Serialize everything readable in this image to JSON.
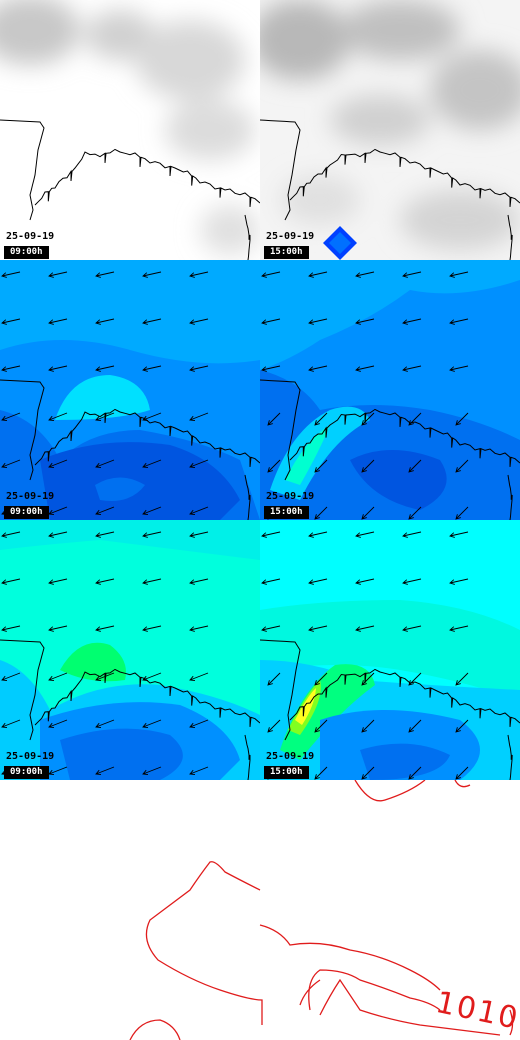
{
  "panels": [
    {
      "id": "cloud-0900",
      "kind": "cloud",
      "date": "25-09-19",
      "time": "09:00h"
    },
    {
      "id": "cloud-1500",
      "kind": "cloud",
      "date": "25-09-19",
      "time": "15:00h"
    },
    {
      "id": "wind-0900",
      "kind": "wind",
      "date": "25-09-19",
      "time": "09:00h"
    },
    {
      "id": "wind-1500",
      "kind": "wind",
      "date": "25-09-19",
      "time": "15:00h"
    },
    {
      "id": "gust-0900",
      "kind": "gust",
      "date": "25-09-19",
      "time": "09:00h"
    },
    {
      "id": "gust-1500",
      "kind": "gust",
      "date": "25-09-19",
      "time": "15:00h"
    }
  ],
  "isobar_label": "1010",
  "colors": {
    "isobar": "#e01c1c",
    "coast": "#000000",
    "wind_light": "#00c0ff",
    "wind_mid": "#0080ff",
    "wind_dark": "#0050e0",
    "gust_cyan": "#00ffff",
    "gust_teal": "#00ffc0",
    "gust_green": "#00ff40"
  }
}
